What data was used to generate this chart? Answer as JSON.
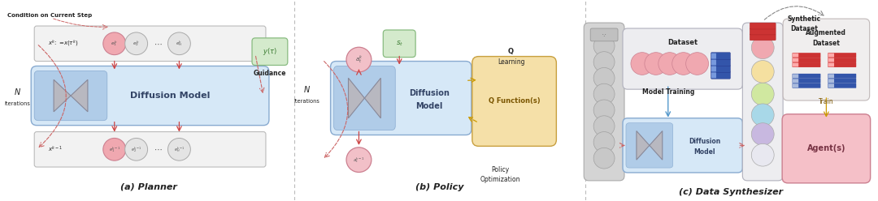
{
  "bg_color": "#ffffff",
  "title_a": "(a) Planner",
  "title_b": "(b) Policy",
  "title_c": "(c) Data Synthesizer",
  "diffusion_box_color": "#d6e8f7",
  "diffusion_inner_color": "#b0cce8",
  "token_box_color": "#f2f2f2",
  "token_stroke": "#bbbbbb",
  "pink_circle_color": "#f0a8b0",
  "pink_circle_edge": "#cc8090",
  "gray_circle_color": "#e4e4e4",
  "gray_circle_edge": "#aaaaaa",
  "green_box_color": "#d4eacc",
  "green_box_edge": "#88bb80",
  "yellow_box_color": "#f5e0a8",
  "yellow_box_edge": "#c8a040",
  "pink_box_color": "#f5c0c8",
  "pink_box_edge": "#cc8090",
  "gray_panel_color": "#e0e0e0",
  "gray_panel_edge": "#aaaaaa",
  "divider_color": "#bbbbbb",
  "arrow_red": "#cc4444",
  "arrow_dashed_red": "#cc6666",
  "arrow_dashed_gold": "#cc9900",
  "arrow_blue": "#4488cc",
  "text_dark": "#222222",
  "text_blue": "#334466",
  "text_green": "#3a7a30",
  "text_gold": "#7a5500"
}
